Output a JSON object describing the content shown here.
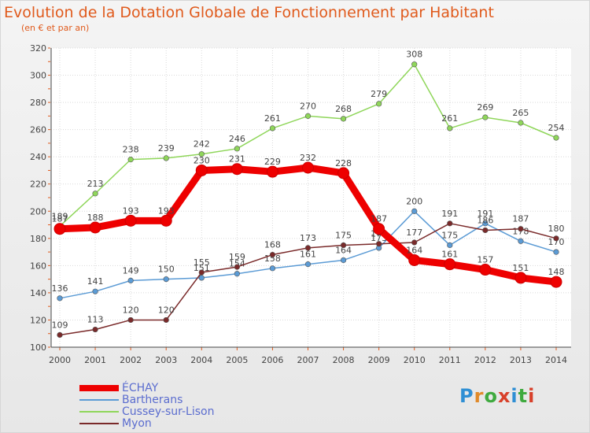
{
  "header": {
    "title": "Evolution de la Dotation Globale de Fonctionnement par Habitant",
    "subtitle": "(en € et par an)"
  },
  "brand": {
    "name": "Proxiti",
    "letters": [
      "P",
      "r",
      "o",
      "x",
      "i",
      "t",
      "i"
    ],
    "colors": [
      "#2f8fd4",
      "#e08a2a",
      "#3faa3f",
      "#d8402a",
      "#2f8fd4",
      "#3faa3f",
      "#d8402a"
    ]
  },
  "chart_data": {
    "type": "line",
    "title": "Evolution de la Dotation Globale de Fonctionnement par Habitant",
    "subtitle": "(en € et par an)",
    "xlabel": "",
    "ylabel": "",
    "ylim": [
      100,
      320
    ],
    "yticks": [
      100,
      120,
      140,
      160,
      180,
      200,
      220,
      240,
      260,
      280,
      300,
      320
    ],
    "grid": true,
    "legend_position": "bottom-left",
    "categories": [
      "2000",
      "2001",
      "2002",
      "2003",
      "2004",
      "2005",
      "2006",
      "2007",
      "2008",
      "2009",
      "2010",
      "2011",
      "2012",
      "2013",
      "2014"
    ],
    "series": [
      {
        "name": "ÉCHAY",
        "color": "#ee0000",
        "values": [
          187,
          188,
          193,
          193,
          230,
          231,
          229,
          232,
          228,
          187,
          164,
          161,
          157,
          151,
          148
        ]
      },
      {
        "name": "Bartherans",
        "color": "#5b9bd5",
        "values": [
          136,
          141,
          149,
          150,
          151,
          154,
          158,
          161,
          164,
          173,
          200,
          175,
          191,
          178,
          170
        ]
      },
      {
        "name": "Cussey-sur-Lison",
        "color": "#8fd65a",
        "values": [
          189,
          213,
          238,
          239,
          242,
          246,
          261,
          270,
          268,
          279,
          308,
          261,
          269,
          265,
          254
        ]
      },
      {
        "name": "Myon",
        "color": "#7a2a2a",
        "values": [
          109,
          113,
          120,
          120,
          155,
          159,
          168,
          173,
          175,
          176,
          177,
          191,
          186,
          187,
          180
        ]
      }
    ]
  }
}
